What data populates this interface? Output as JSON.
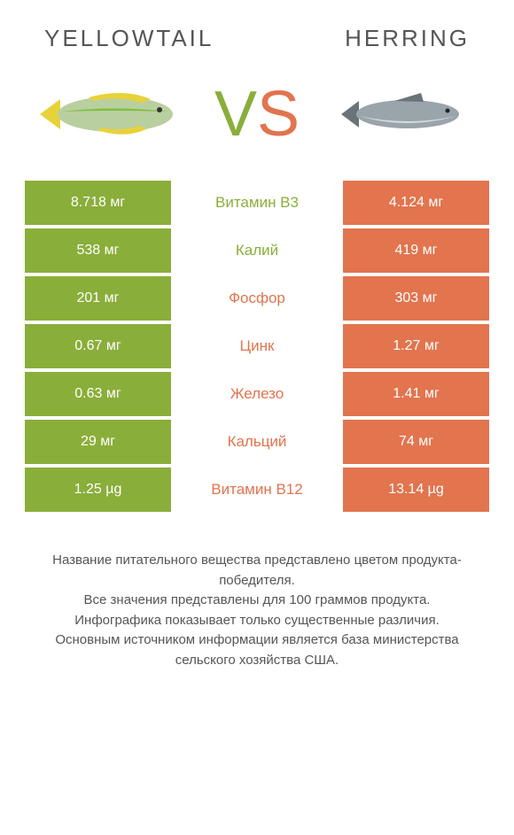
{
  "header": {
    "left_title": "YELLOWTAIL",
    "right_title": "HERRING"
  },
  "vs": {
    "v": "V",
    "s": "S"
  },
  "colors": {
    "left": "#8aae3a",
    "right": "#e2744e",
    "text": "#555555",
    "bg": "#ffffff"
  },
  "fish": {
    "left_body": "#b9cfa0",
    "left_fin": "#e8d23a",
    "left_stripe": "#7fbf3f",
    "right_body": "#9aa5ab",
    "right_belly": "#d8dcde",
    "right_fin": "#6a7378"
  },
  "rows": [
    {
      "left": "8.718 мг",
      "label": "Витамин B3",
      "right": "4.124 мг",
      "winner": "left"
    },
    {
      "left": "538 мг",
      "label": "Калий",
      "right": "419 мг",
      "winner": "left"
    },
    {
      "left": "201 мг",
      "label": "Фосфор",
      "right": "303 мг",
      "winner": "right"
    },
    {
      "left": "0.67 мг",
      "label": "Цинк",
      "right": "1.27 мг",
      "winner": "right"
    },
    {
      "left": "0.63 мг",
      "label": "Железо",
      "right": "1.41 мг",
      "winner": "right"
    },
    {
      "left": "29 мг",
      "label": "Кальций",
      "right": "74 мг",
      "winner": "right"
    },
    {
      "left": "1.25 µg",
      "label": "Витамин B12",
      "right": "13.14 µg",
      "winner": "right"
    }
  ],
  "footer": {
    "line1": "Название питательного вещества представлено цветом продукта-победителя.",
    "line2": "Все значения представлены для 100 граммов продукта.",
    "line3": "Инфографика показывает только существенные различия.",
    "line4": "Основным источником информации является база министерства сельского хозяйства США."
  }
}
